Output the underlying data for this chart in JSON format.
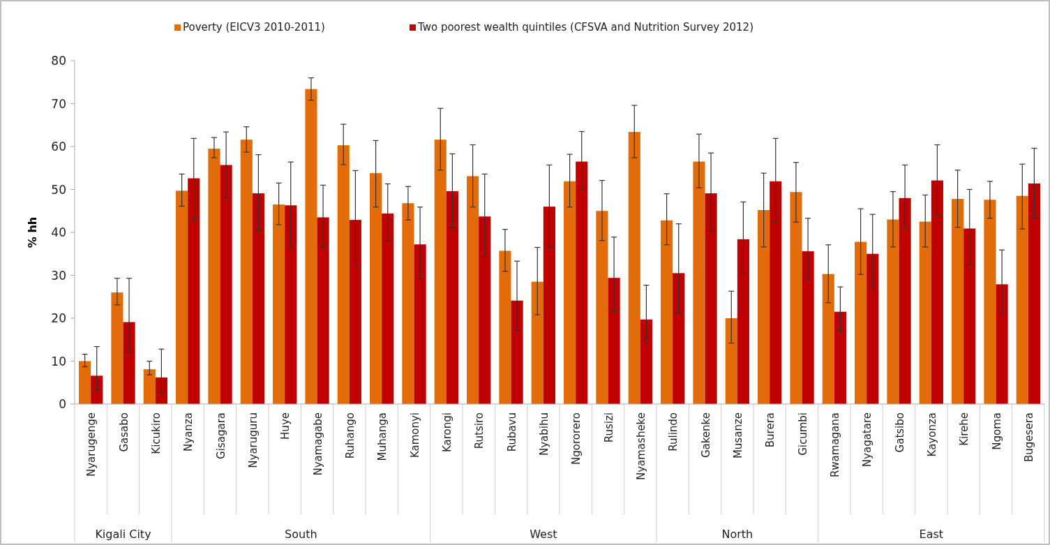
{
  "chart_data": {
    "type": "bar",
    "ylabel": "% hh",
    "legend": "top",
    "grid": false,
    "categories": [
      "Nyarugenge",
      "Gasabo",
      "Kicukiro",
      "Nyanza",
      "Gisagara",
      "Nyaruguru",
      "Huye",
      "Nyamagabe",
      "Ruhango",
      "Muhanga",
      "Kamonyi",
      "Karongi",
      "Rutsiro",
      "Rubavu",
      "Nyabihu",
      "Ngororero",
      "Rusizi",
      "Nyamasheke",
      "Rulindo",
      "Gakenke",
      "Musanze",
      "Burera",
      "Gicumbi",
      "Rwamagana",
      "Nyagatare",
      "Gatsibo",
      "Kayonza",
      "Kirehe",
      "Ngoma",
      "Bugesera"
    ],
    "series": [
      {
        "name": "Poverty (EICV3 2010-2011)",
        "color": "#e36c0a",
        "values": [
          10.0,
          26.0,
          8.1,
          49.7,
          59.5,
          61.6,
          46.5,
          73.4,
          60.3,
          53.8,
          46.8,
          61.6,
          53.1,
          35.7,
          28.5,
          51.9,
          45.0,
          63.4,
          42.8,
          56.5,
          20.0,
          45.2,
          49.4,
          30.3,
          37.8,
          43.0,
          42.5,
          47.8,
          47.6,
          48.5
        ],
        "errors": [
          [
            8.7,
            11.6
          ],
          [
            23.1,
            29.3
          ],
          [
            6.8,
            10.0
          ],
          [
            46.1,
            53.6
          ],
          [
            57.4,
            62.1
          ],
          [
            58.7,
            64.6
          ],
          [
            41.8,
            51.5
          ],
          [
            70.8,
            76.0
          ],
          [
            55.8,
            65.2
          ],
          [
            45.9,
            61.4
          ],
          [
            42.9,
            50.7
          ],
          [
            54.5,
            68.9
          ],
          [
            45.9,
            60.4
          ],
          [
            30.9,
            40.7
          ],
          [
            20.8,
            36.5
          ],
          [
            45.9,
            58.2
          ],
          [
            38.1,
            52.1
          ],
          [
            57.4,
            69.6
          ],
          [
            37.1,
            49.0
          ],
          [
            50.4,
            62.9
          ],
          [
            14.2,
            26.3
          ],
          [
            36.6,
            53.8
          ],
          [
            42.4,
            56.3
          ],
          [
            23.6,
            37.1
          ],
          [
            30.2,
            45.5
          ],
          [
            36.6,
            49.5
          ],
          [
            36.6,
            48.7
          ],
          [
            41.2,
            54.5
          ],
          [
            43.3,
            51.9
          ],
          [
            40.8,
            55.9
          ]
        ]
      },
      {
        "name": "Two poorest wealth quintiles (CFSVA and Nutrition Survey 2012)",
        "color": "#c00000",
        "values": [
          6.6,
          19.1,
          6.2,
          52.6,
          55.7,
          49.1,
          46.3,
          43.5,
          42.9,
          44.4,
          37.2,
          49.6,
          43.7,
          24.1,
          46.0,
          56.5,
          29.4,
          19.7,
          30.5,
          49.1,
          38.4,
          51.9,
          35.6,
          21.5,
          35.0,
          48.0,
          52.1,
          40.9,
          27.9,
          51.4
        ],
        "errors": [
          [
            3.3,
            13.4
          ],
          [
            12.0,
            29.3
          ],
          [
            2.7,
            12.8
          ],
          [
            43.0,
            61.9
          ],
          [
            48.0,
            63.4
          ],
          [
            40.4,
            58.1
          ],
          [
            36.6,
            56.4
          ],
          [
            36.5,
            51.0
          ],
          [
            32.1,
            54.4
          ],
          [
            38.0,
            51.3
          ],
          [
            29.2,
            45.9
          ],
          [
            41.1,
            58.3
          ],
          [
            34.4,
            53.6
          ],
          [
            17.1,
            33.3
          ],
          [
            36.5,
            55.7
          ],
          [
            49.9,
            63.5
          ],
          [
            21.5,
            38.9
          ],
          [
            13.9,
            27.7
          ],
          [
            21.2,
            42.0
          ],
          [
            40.3,
            58.5
          ],
          [
            30.5,
            47.1
          ],
          [
            42.3,
            61.9
          ],
          [
            28.9,
            43.3
          ],
          [
            17.0,
            27.3
          ],
          [
            26.9,
            44.2
          ],
          [
            40.8,
            55.7
          ],
          [
            44.0,
            60.4
          ],
          [
            32.5,
            50.0
          ],
          [
            21.1,
            35.9
          ],
          [
            43.3,
            59.6
          ]
        ]
      }
    ],
    "ylim": [
      0,
      80
    ],
    "yticks": [
      0,
      10,
      20,
      30,
      40,
      50,
      60,
      70,
      80
    ],
    "annotations": [
      "Kigali City",
      "South",
      "West",
      "North",
      "East"
    ]
  }
}
